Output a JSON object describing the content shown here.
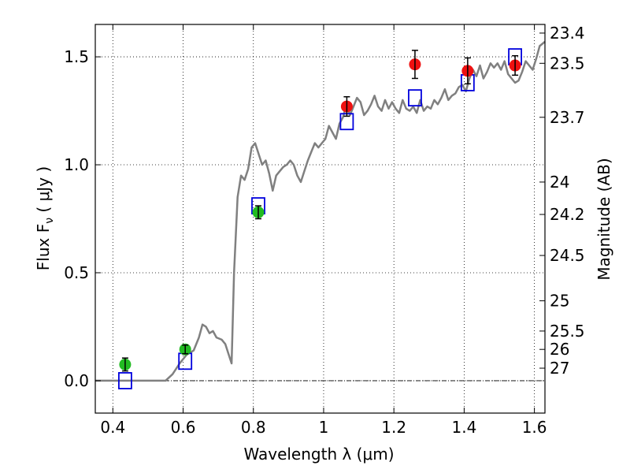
{
  "chart_data": {
    "type": "scatter",
    "xlabel": "Wavelength  λ (μm)",
    "ylabel": "Flux  F",
    "ylabel_sub": "ν",
    "ylabel_unit": "  ( μJy )",
    "y2label": "Magnitude (AB)",
    "xlim": [
      0.35,
      1.63
    ],
    "ylim": [
      -0.15,
      1.65
    ],
    "grid": true,
    "x_ticks": [
      0.4,
      0.6,
      0.8,
      1.0,
      1.2,
      1.4,
      1.6
    ],
    "x_tick_labels": [
      "0.4",
      "0.6",
      "0.8",
      "1",
      "1.2",
      "1.4",
      "1.6"
    ],
    "y_ticks": [
      0.0,
      0.5,
      1.0,
      1.5
    ],
    "y_tick_labels": [
      "0.0",
      "0.5",
      "1.0",
      "1.5"
    ],
    "right_axis_ticks": [
      {
        "label": "23.4",
        "flux": 1.61
      },
      {
        "label": "23.5",
        "flux": 1.47
      },
      {
        "label": "23.7",
        "flux": 1.22
      },
      {
        "label": "24",
        "flux": 0.92
      },
      {
        "label": "24.2",
        "flux": 0.77
      },
      {
        "label": "24.5",
        "flux": 0.58
      },
      {
        "label": "25",
        "flux": 0.37
      },
      {
        "label": "25.5",
        "flux": 0.23
      },
      {
        "label": "26",
        "flux": 0.145
      },
      {
        "label": "27",
        "flux": 0.058
      }
    ],
    "zero_line": 0.0,
    "series": [
      {
        "marker": "circle",
        "color": "#22bb22",
        "points": [
          {
            "x": 0.435,
            "y": 0.075,
            "err": 0.03
          },
          {
            "x": 0.606,
            "y": 0.145,
            "err": 0.02
          },
          {
            "x": 0.814,
            "y": 0.78,
            "err": 0.03
          }
        ]
      },
      {
        "marker": "circle",
        "color": "#ee1111",
        "points": [
          {
            "x": 1.066,
            "y": 1.27,
            "err": 0.045
          },
          {
            "x": 1.26,
            "y": 1.465,
            "err": 0.065
          },
          {
            "x": 1.41,
            "y": 1.435,
            "err": 0.06
          },
          {
            "x": 1.545,
            "y": 1.46,
            "err": 0.045
          }
        ]
      },
      {
        "marker": "open-square",
        "color": "#0000dd",
        "points": [
          {
            "x": 0.435,
            "y": 0.0
          },
          {
            "x": 0.606,
            "y": 0.09
          },
          {
            "x": 0.814,
            "y": 0.81
          },
          {
            "x": 1.066,
            "y": 1.2
          },
          {
            "x": 1.26,
            "y": 1.31
          },
          {
            "x": 1.41,
            "y": 1.38
          },
          {
            "x": 1.545,
            "y": 1.5
          }
        ]
      },
      {
        "marker": "line",
        "color": "#808080",
        "points": [
          [
            0.35,
            0.0
          ],
          [
            0.55,
            0.0
          ],
          [
            0.57,
            0.03
          ],
          [
            0.59,
            0.08
          ],
          [
            0.61,
            0.12
          ],
          [
            0.63,
            0.14
          ],
          [
            0.645,
            0.2
          ],
          [
            0.655,
            0.26
          ],
          [
            0.665,
            0.25
          ],
          [
            0.675,
            0.22
          ],
          [
            0.685,
            0.23
          ],
          [
            0.695,
            0.2
          ],
          [
            0.71,
            0.19
          ],
          [
            0.72,
            0.17
          ],
          [
            0.73,
            0.12
          ],
          [
            0.738,
            0.08
          ],
          [
            0.74,
            0.2
          ],
          [
            0.745,
            0.5
          ],
          [
            0.755,
            0.85
          ],
          [
            0.765,
            0.95
          ],
          [
            0.775,
            0.93
          ],
          [
            0.785,
            0.98
          ],
          [
            0.795,
            1.08
          ],
          [
            0.805,
            1.1
          ],
          [
            0.815,
            1.05
          ],
          [
            0.825,
            1.0
          ],
          [
            0.835,
            1.02
          ],
          [
            0.845,
            0.96
          ],
          [
            0.855,
            0.88
          ],
          [
            0.865,
            0.95
          ],
          [
            0.875,
            0.97
          ],
          [
            0.885,
            0.99
          ],
          [
            0.895,
            1.0
          ],
          [
            0.905,
            1.02
          ],
          [
            0.915,
            1.0
          ],
          [
            0.925,
            0.95
          ],
          [
            0.935,
            0.92
          ],
          [
            0.945,
            0.97
          ],
          [
            0.955,
            1.02
          ],
          [
            0.965,
            1.06
          ],
          [
            0.975,
            1.1
          ],
          [
            0.985,
            1.08
          ],
          [
            0.995,
            1.1
          ],
          [
            1.005,
            1.12
          ],
          [
            1.015,
            1.18
          ],
          [
            1.025,
            1.15
          ],
          [
            1.035,
            1.12
          ],
          [
            1.045,
            1.19
          ],
          [
            1.055,
            1.22
          ],
          [
            1.065,
            1.28
          ],
          [
            1.075,
            1.23
          ],
          [
            1.085,
            1.27
          ],
          [
            1.095,
            1.31
          ],
          [
            1.105,
            1.29
          ],
          [
            1.115,
            1.23
          ],
          [
            1.125,
            1.25
          ],
          [
            1.135,
            1.28
          ],
          [
            1.145,
            1.32
          ],
          [
            1.155,
            1.27
          ],
          [
            1.165,
            1.25
          ],
          [
            1.175,
            1.3
          ],
          [
            1.185,
            1.26
          ],
          [
            1.195,
            1.29
          ],
          [
            1.205,
            1.26
          ],
          [
            1.215,
            1.24
          ],
          [
            1.225,
            1.3
          ],
          [
            1.235,
            1.26
          ],
          [
            1.245,
            1.25
          ],
          [
            1.255,
            1.27
          ],
          [
            1.265,
            1.24
          ],
          [
            1.275,
            1.3
          ],
          [
            1.285,
            1.25
          ],
          [
            1.295,
            1.27
          ],
          [
            1.305,
            1.26
          ],
          [
            1.315,
            1.3
          ],
          [
            1.325,
            1.28
          ],
          [
            1.335,
            1.31
          ],
          [
            1.345,
            1.35
          ],
          [
            1.355,
            1.3
          ],
          [
            1.365,
            1.32
          ],
          [
            1.375,
            1.33
          ],
          [
            1.385,
            1.36
          ],
          [
            1.395,
            1.37
          ],
          [
            1.405,
            1.34
          ],
          [
            1.415,
            1.4
          ],
          [
            1.425,
            1.44
          ],
          [
            1.435,
            1.41
          ],
          [
            1.445,
            1.46
          ],
          [
            1.455,
            1.4
          ],
          [
            1.465,
            1.43
          ],
          [
            1.475,
            1.47
          ],
          [
            1.485,
            1.45
          ],
          [
            1.495,
            1.47
          ],
          [
            1.505,
            1.44
          ],
          [
            1.515,
            1.48
          ],
          [
            1.525,
            1.42
          ],
          [
            1.535,
            1.4
          ],
          [
            1.545,
            1.38
          ],
          [
            1.555,
            1.39
          ],
          [
            1.565,
            1.43
          ],
          [
            1.575,
            1.48
          ],
          [
            1.585,
            1.46
          ],
          [
            1.595,
            1.44
          ],
          [
            1.605,
            1.49
          ],
          [
            1.615,
            1.55
          ],
          [
            1.63,
            1.57
          ]
        ]
      }
    ]
  }
}
